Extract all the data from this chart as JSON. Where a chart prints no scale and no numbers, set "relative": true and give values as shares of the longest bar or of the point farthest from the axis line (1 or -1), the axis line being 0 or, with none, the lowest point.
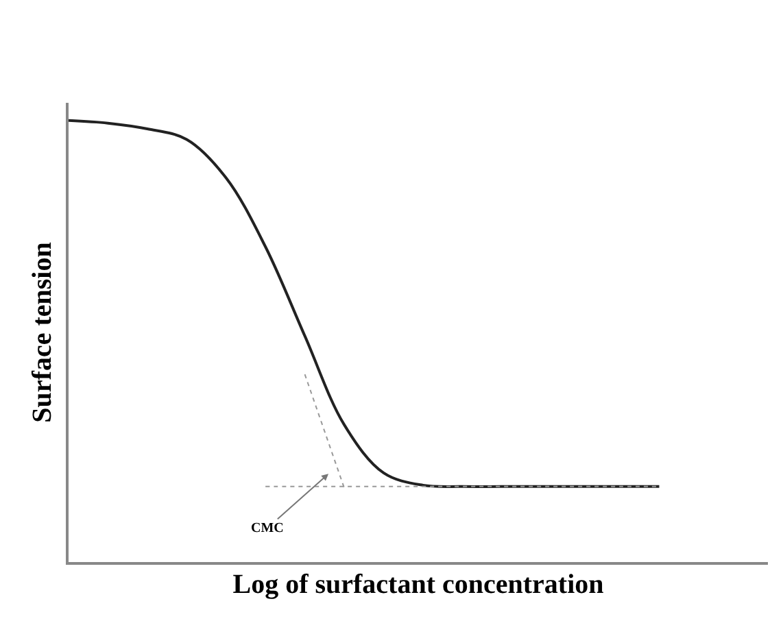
{
  "chart_data": {
    "type": "line",
    "relative": true,
    "xlabel": "Log of surfactant concentration",
    "ylabel": "Surface tension",
    "categories": [
      null,
      null,
      null,
      null,
      null,
      null,
      null,
      null,
      null,
      null,
      null,
      null,
      null,
      null,
      null,
      null
    ],
    "series": [
      {
        "color": "#222222",
        "line_style": "solid",
        "values": [
          1.0,
          0.994,
          0.981,
          0.957,
          0.87,
          0.714,
          0.512,
          0.311,
          0.202,
          0.174,
          0.171,
          0.171,
          0.171,
          0.171,
          0.171,
          0.171
        ]
      },
      {
        "color": "#999999",
        "line_style": "dotted",
        "values": [
          null,
          null,
          null,
          null,
          null,
          0.171,
          0.171,
          0.171,
          0.171,
          0.171,
          0.171,
          0.171,
          0.171,
          0.171,
          0.171,
          0.171
        ]
      },
      {
        "color": "#999999",
        "line_style": "dotted",
        "values": [
          null,
          null,
          null,
          null,
          null,
          null,
          0.425,
          0.168,
          null,
          null,
          null,
          null,
          null,
          null,
          null,
          null
        ]
      }
    ],
    "annotations": [
      "CMC"
    ],
    "marker": "none"
  }
}
